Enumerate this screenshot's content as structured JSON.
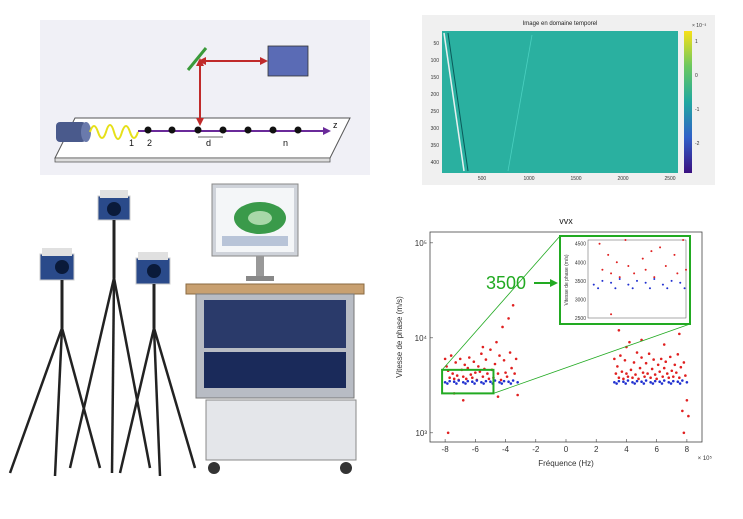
{
  "schematic": {
    "mark_1": "1",
    "mark_2": "2",
    "mark_d": "d",
    "mark_n": "n",
    "axis_z": "z"
  },
  "colors": {
    "laser_body": "#4a5a8c",
    "detector_box": "#5a6bb5",
    "beam_path": "#c02a2a",
    "wave": "#e6e01a",
    "propagation_axis": "#6a2a9a",
    "mirror": "#3a9a3a",
    "time_map_bg": "#2ab0a0",
    "zoom_box": "#22aa22",
    "points_red": "#e02020",
    "points_blue": "#2030d0"
  },
  "equipment_photo": {
    "icons": [
      "tripod-camera-icon",
      "computer-monitor-icon",
      "rack-cart-icon"
    ]
  },
  "time_map": {
    "title": "Image en domaine temporel",
    "colorbar_exponent": "× 10⁻³",
    "colorbar_ticks": [
      "1",
      "0",
      "-1",
      "-2"
    ],
    "y_ticks": [
      "50",
      "100",
      "150",
      "200",
      "250",
      "300",
      "350",
      "400"
    ],
    "x_ticks": [
      "500",
      "1000",
      "1500",
      "2000",
      "2500"
    ]
  },
  "chart_data": {
    "type": "scatter",
    "title": "vvx",
    "xlabel": "Fréquence (Hz)",
    "ylabel": "Vitesse de phase (m/s)",
    "x_exponent": "× 10⁵",
    "xlim": [
      -9,
      9
    ],
    "ylim": [
      800,
      130000
    ],
    "y_scale": "log",
    "x_ticks": [
      "-8",
      "-6",
      "-4",
      "-2",
      "0",
      "2",
      "4",
      "6",
      "8"
    ],
    "y_ticks": [
      "10³",
      "10⁴",
      "10⁵"
    ],
    "series": [
      {
        "color": "red",
        "points": [
          [
            -8,
            6000
          ],
          [
            -7.9,
            5000
          ],
          [
            -7.8,
            4500
          ],
          [
            -7.8,
            1000
          ],
          [
            -7.7,
            3800
          ],
          [
            -7.6,
            6500
          ],
          [
            -7.5,
            4200
          ],
          [
            -7.4,
            3700
          ],
          [
            -7.3,
            5500
          ],
          [
            -7.2,
            4000
          ],
          [
            -7.1,
            3600
          ],
          [
            -7,
            6000
          ],
          [
            -6.9,
            4600
          ],
          [
            -6.8,
            3900
          ],
          [
            -6.7,
            5200
          ],
          [
            -6.6,
            3700
          ],
          [
            -6.5,
            4800
          ],
          [
            -6.4,
            6200
          ],
          [
            -6.3,
            4100
          ],
          [
            -6.2,
            3800
          ],
          [
            -6.1,
            5600
          ],
          [
            -6,
            4300
          ],
          [
            -5.9,
            3600
          ],
          [
            -5.8,
            5000
          ],
          [
            -5.7,
            4400
          ],
          [
            -5.6,
            6800
          ],
          [
            -5.5,
            3900
          ],
          [
            -5.4,
            4700
          ],
          [
            -5.3,
            5900
          ],
          [
            -5.2,
            4200
          ],
          [
            -5.1,
            3700
          ],
          [
            -5,
            7500
          ],
          [
            -4.9,
            4600
          ],
          [
            -4.8,
            3800
          ],
          [
            -4.7,
            5300
          ],
          [
            -4.6,
            9000
          ],
          [
            -4.5,
            4200
          ],
          [
            -4.4,
            6500
          ],
          [
            -4.3,
            3600
          ],
          [
            -4.2,
            13000
          ],
          [
            -4.1,
            5800
          ],
          [
            -4,
            4300
          ],
          [
            -3.9,
            3900
          ],
          [
            -3.8,
            16000
          ],
          [
            -3.7,
            7000
          ],
          [
            -3.6,
            4800
          ],
          [
            -3.5,
            22000
          ],
          [
            -3.4,
            4200
          ],
          [
            -3.3,
            6000
          ],
          [
            -3.2,
            2500
          ],
          [
            -7.4,
            2600
          ],
          [
            -6.8,
            2200
          ],
          [
            -5.5,
            8000
          ],
          [
            -4.5,
            2400
          ],
          [
            3.2,
            6000
          ],
          [
            3.3,
            4200
          ],
          [
            3.4,
            5000
          ],
          [
            3.5,
            3800
          ],
          [
            3.6,
            6500
          ],
          [
            3.7,
            4400
          ],
          [
            3.8,
            3700
          ],
          [
            3.9,
            5800
          ],
          [
            4,
            4200
          ],
          [
            4.1,
            3900
          ],
          [
            4.2,
            9000
          ],
          [
            4.3,
            4600
          ],
          [
            4.4,
            3800
          ],
          [
            4.5,
            5500
          ],
          [
            4.6,
            4100
          ],
          [
            4.7,
            7000
          ],
          [
            4.8,
            3700
          ],
          [
            4.9,
            4800
          ],
          [
            5,
            6200
          ],
          [
            5.1,
            4300
          ],
          [
            5.2,
            3900
          ],
          [
            5.3,
            5400
          ],
          [
            5.4,
            4200
          ],
          [
            5.5,
            6800
          ],
          [
            5.6,
            3800
          ],
          [
            5.7,
            4700
          ],
          [
            5.8,
            5900
          ],
          [
            5.9,
            4100
          ],
          [
            6,
            3700
          ],
          [
            6.1,
            5200
          ],
          [
            6.2,
            4400
          ],
          [
            6.3,
            6000
          ],
          [
            6.4,
            3900
          ],
          [
            6.5,
            4800
          ],
          [
            6.6,
            5600
          ],
          [
            6.7,
            4200
          ],
          [
            6.8,
            3800
          ],
          [
            6.9,
            6300
          ],
          [
            7,
            4500
          ],
          [
            7.1,
            3900
          ],
          [
            7.2,
            5200
          ],
          [
            7.3,
            4300
          ],
          [
            7.4,
            6700
          ],
          [
            7.5,
            3800
          ],
          [
            7.6,
            4900
          ],
          [
            7.7,
            1700
          ],
          [
            7.8,
            5500
          ],
          [
            7.9,
            4000
          ],
          [
            8,
            2200
          ],
          [
            8.1,
            1500
          ],
          [
            3.5,
            12000
          ],
          [
            4,
            8000
          ],
          [
            5,
            9500
          ],
          [
            6.5,
            8500
          ],
          [
            7.5,
            11000
          ],
          [
            7.8,
            1000
          ]
        ]
      },
      {
        "color": "blue",
        "points": [
          [
            -8,
            3400
          ],
          [
            -7.7,
            3500
          ],
          [
            -7.4,
            3450
          ],
          [
            -7.1,
            3550
          ],
          [
            -6.8,
            3400
          ],
          [
            -6.5,
            3500
          ],
          [
            -6.2,
            3450
          ],
          [
            -5.9,
            3550
          ],
          [
            -5.6,
            3400
          ],
          [
            -5.3,
            3500
          ],
          [
            -5,
            3450
          ],
          [
            -4.7,
            3550
          ],
          [
            -4.4,
            3400
          ],
          [
            -4.1,
            3500
          ],
          [
            -3.8,
            3450
          ],
          [
            -3.5,
            3550
          ],
          [
            -3.2,
            3400
          ],
          [
            -7.85,
            3300
          ],
          [
            -7.25,
            3300
          ],
          [
            -6.65,
            3300
          ],
          [
            -6.05,
            3300
          ],
          [
            -5.45,
            3300
          ],
          [
            -4.85,
            3300
          ],
          [
            -4.25,
            3300
          ],
          [
            -3.65,
            3300
          ],
          [
            3.2,
            3400
          ],
          [
            3.5,
            3500
          ],
          [
            3.8,
            3450
          ],
          [
            4.1,
            3550
          ],
          [
            4.4,
            3400
          ],
          [
            4.7,
            3500
          ],
          [
            5,
            3450
          ],
          [
            5.3,
            3550
          ],
          [
            5.6,
            3400
          ],
          [
            5.9,
            3500
          ],
          [
            6.2,
            3450
          ],
          [
            6.5,
            3550
          ],
          [
            6.8,
            3400
          ],
          [
            7.1,
            3500
          ],
          [
            7.4,
            3450
          ],
          [
            7.7,
            3550
          ],
          [
            8,
            3400
          ],
          [
            3.35,
            3300
          ],
          [
            3.95,
            3300
          ],
          [
            4.55,
            3300
          ],
          [
            5.15,
            3300
          ],
          [
            5.75,
            3300
          ],
          [
            6.35,
            3300
          ],
          [
            6.95,
            3300
          ],
          [
            7.55,
            3300
          ]
        ]
      }
    ],
    "zoom_inset": {
      "xlim": [
        -8.2,
        -4.8
      ],
      "ylim": [
        2600,
        4600
      ],
      "y_ticks": [
        "2500",
        "3000",
        "3500",
        "4000",
        "4500"
      ],
      "ylabel": "Vitesse de phase (m/s)"
    },
    "annotation": "3500"
  }
}
